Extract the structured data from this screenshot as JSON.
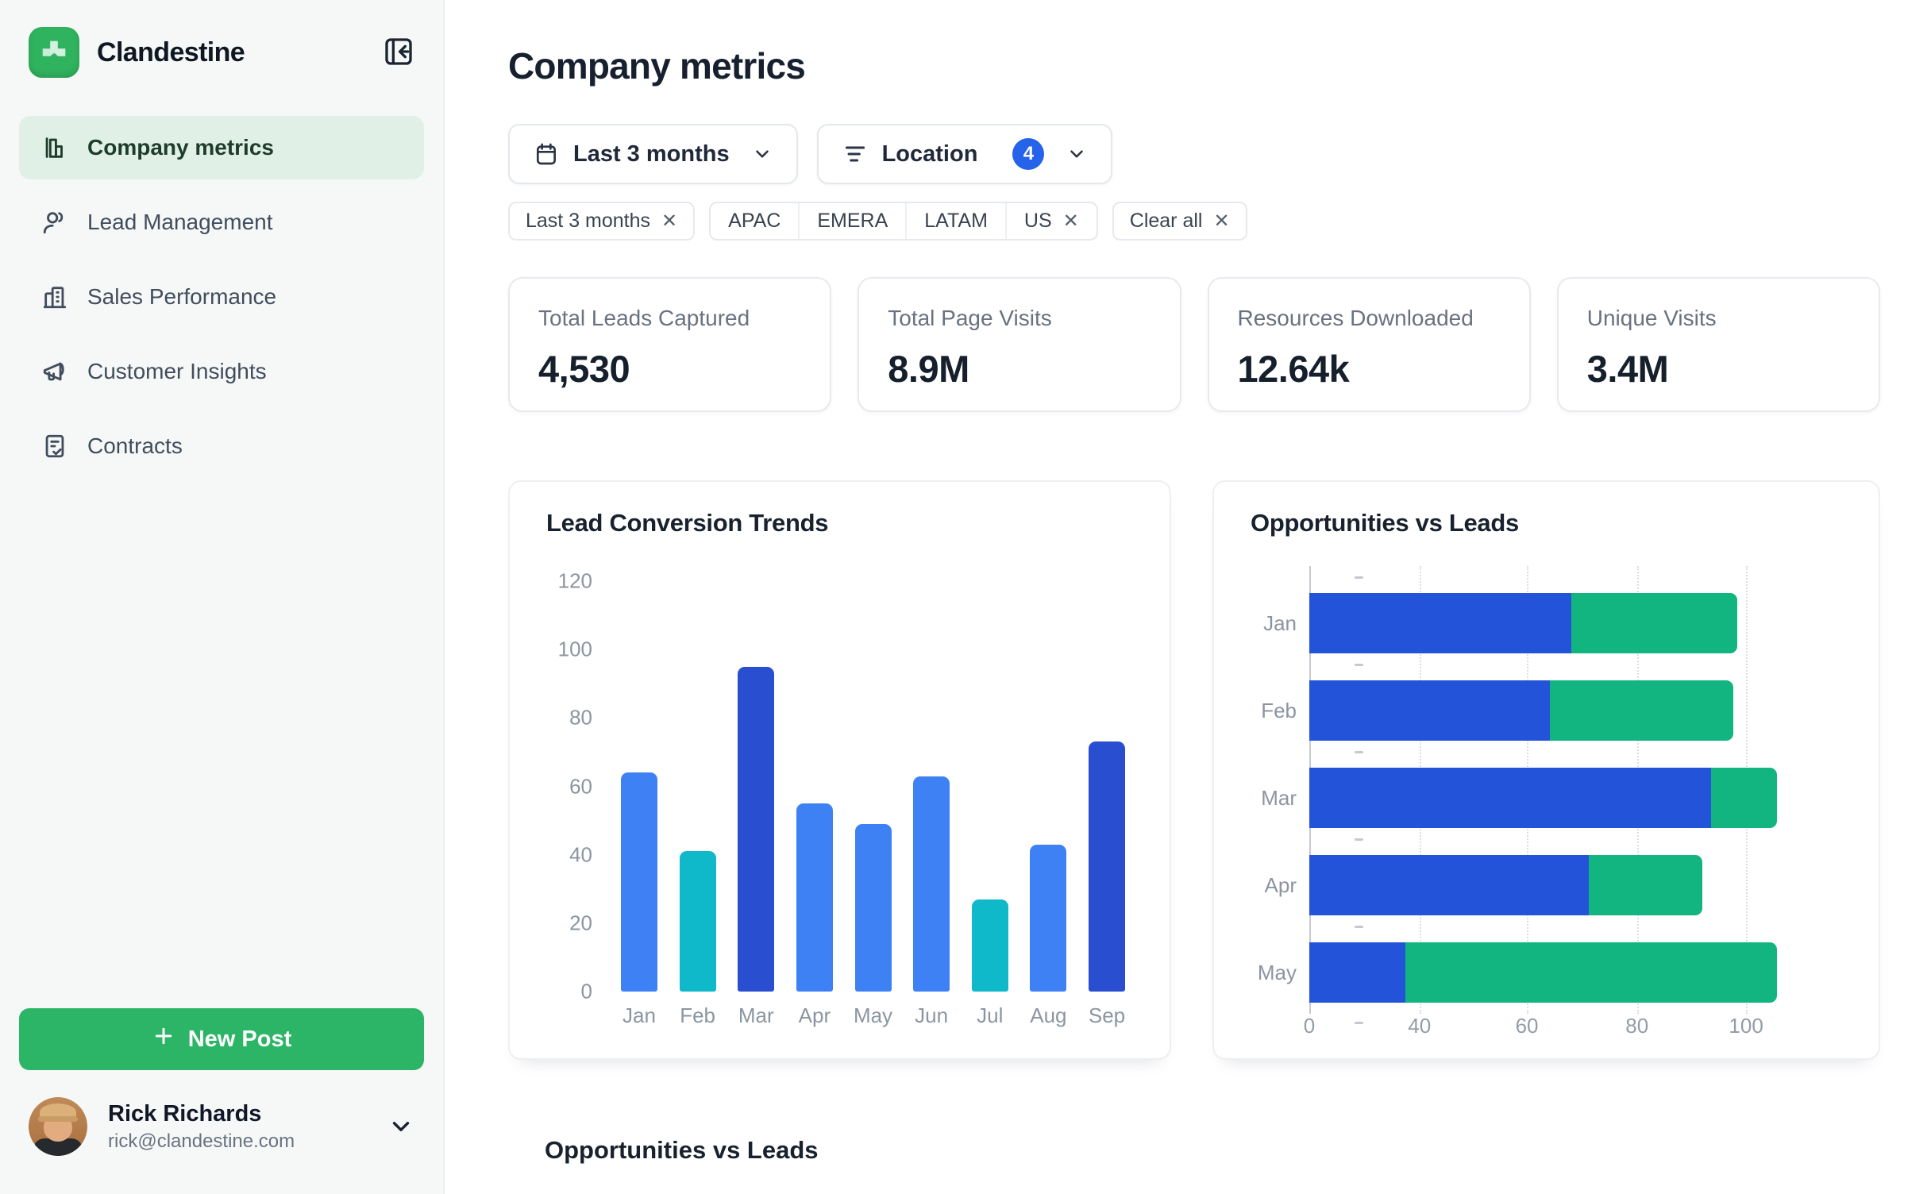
{
  "brand": {
    "name": "Clandestine",
    "logo_color": "#30b35e"
  },
  "sidebar": {
    "items": [
      {
        "label": "Company metrics",
        "icon": "chart-column-icon",
        "active": true
      },
      {
        "label": "Lead Management",
        "icon": "users-icon",
        "active": false
      },
      {
        "label": "Sales Performance",
        "icon": "building-icon",
        "active": false
      },
      {
        "label": "Customer Insights",
        "icon": "megaphone-icon",
        "active": false
      },
      {
        "label": "Contracts",
        "icon": "file-check-icon",
        "active": false
      }
    ],
    "new_post_label": "New Post",
    "user": {
      "name": "Rick Richards",
      "email": "rick@clandestine.com"
    }
  },
  "header": {
    "title": "Company metrics"
  },
  "filters": {
    "date": {
      "label": "Last 3 months",
      "icon": "calendar-icon"
    },
    "location": {
      "label": "Location",
      "icon": "filter-icon",
      "count": "4",
      "badge_color": "#2563eb"
    }
  },
  "chips": {
    "date_chip": "Last 3 months",
    "locations": [
      "APAC",
      "EMERA",
      "LATAM",
      "US"
    ],
    "clear_all": "Clear all"
  },
  "stats": [
    {
      "label": "Total Leads Captured",
      "value": "4,530"
    },
    {
      "label": "Total Page Visits",
      "value": "8.9M"
    },
    {
      "label": "Resources Downloaded",
      "value": "12.64k"
    },
    {
      "label": "Unique Visits",
      "value": "3.4M"
    }
  ],
  "chart_data": [
    {
      "type": "bar",
      "title": "Lead Conversion Trends",
      "categories": [
        "Jan",
        "Feb",
        "Mar",
        "Apr",
        "May",
        "Jun",
        "Jul",
        "Aug",
        "Sep"
      ],
      "values": [
        64,
        41,
        95,
        55,
        49,
        63,
        27,
        43,
        73
      ],
      "bar_colors": [
        "#3e81f4",
        "#10b9ca",
        "#2a4ed0",
        "#3e81f4",
        "#3e81f4",
        "#3e81f4",
        "#10b9ca",
        "#3e81f4",
        "#2a4ed0"
      ],
      "xlabel": "",
      "ylabel": "",
      "ylim": [
        0,
        120
      ],
      "yticks": [
        0,
        20,
        40,
        60,
        80,
        100,
        120
      ],
      "grid": false,
      "legend": "none"
    },
    {
      "type": "bar-horizontal-stacked",
      "title": "Opportunities vs Leads",
      "categories": [
        "Jan",
        "Feb",
        "Mar",
        "Apr",
        "May"
      ],
      "series": [
        {
          "name": "Opportunities",
          "color": "#2353d8",
          "values": [
            60,
            55,
            92,
            64,
            22
          ]
        },
        {
          "name": "Leads",
          "color": "#12b480",
          "values": [
            38,
            42,
            15,
            26,
            85
          ]
        }
      ],
      "xticks": [
        0,
        40,
        60,
        80,
        100
      ],
      "xtick_positions_pct": [
        0,
        20.4,
        40.3,
        60.7,
        80.9
      ],
      "xmax_visual": 123.6,
      "grid": "dotted-vertical",
      "legend": "none"
    }
  ],
  "section_below": {
    "title": "Opportunities vs Leads"
  },
  "colors": {
    "accent_green": "#2cb566",
    "active_nav_bg": "#e1f0e6",
    "badge_blue": "#2563eb",
    "bar_blue": "#3e81f4",
    "bar_cyan": "#10b9ca",
    "bar_dark_blue": "#2a4ed0",
    "hbar_blue": "#2353d8",
    "hbar_green": "#12b480"
  }
}
